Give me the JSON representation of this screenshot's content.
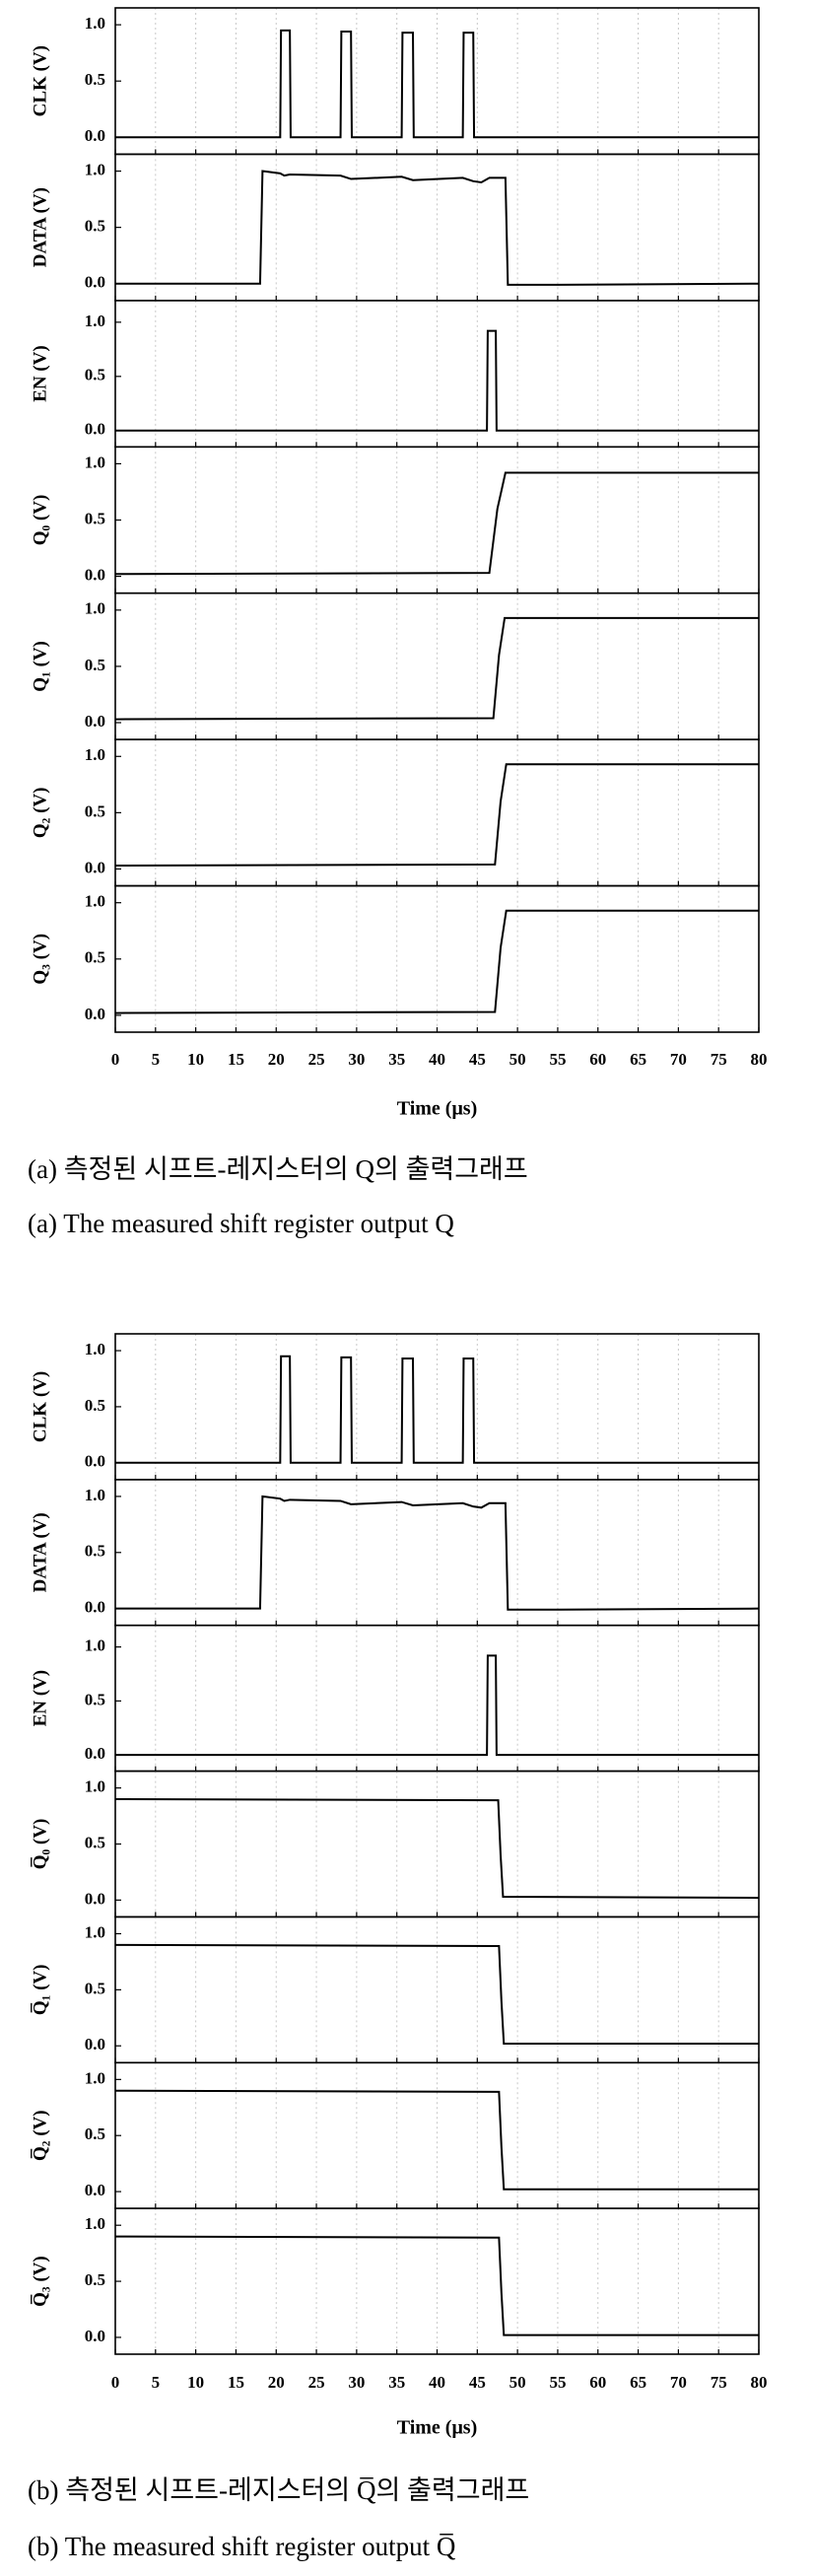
{
  "chart_data": [
    {
      "type": "line",
      "x_label": "Time (μs)",
      "xlim": [
        0,
        80
      ],
      "xticks": [
        0,
        5,
        10,
        15,
        20,
        25,
        30,
        35,
        40,
        45,
        50,
        55,
        60,
        65,
        70,
        75,
        80
      ],
      "grid": true,
      "caption": [
        "(a) 측정된 시프트-레지스터의 Q의 출력그래프",
        "(a) The measured shift register output Q"
      ],
      "panels": [
        {
          "y_label": "CLK (V)",
          "color": "#000000",
          "ylim": [
            -0.15,
            1.15
          ],
          "yticks": [
            {
              "value": 0,
              "label": "0.0"
            },
            {
              "value": 0.5,
              "label": "0.5"
            },
            {
              "value": 1,
              "label": "1.0"
            }
          ],
          "x": [
            0,
            20.5,
            20.6,
            21.7,
            21.8,
            28,
            28.1,
            29.3,
            29.4,
            35.6,
            35.7,
            37,
            37.1,
            43.2,
            43.3,
            44.5,
            44.6,
            80
          ],
          "values": [
            0,
            0,
            0.95,
            0.95,
            0,
            0,
            0.94,
            0.94,
            0,
            0,
            0.93,
            0.93,
            0,
            0,
            0.93,
            0.93,
            0,
            0
          ]
        },
        {
          "y_label": "DATA (V)",
          "color": "#000000",
          "ylim": [
            -0.15,
            1.15
          ],
          "yticks": [
            {
              "value": 0,
              "label": "0.0"
            },
            {
              "value": 0.5,
              "label": "0.5"
            },
            {
              "value": 1,
              "label": "1.0"
            }
          ],
          "x": [
            0,
            18,
            18.3,
            20.5,
            21,
            21.7,
            28,
            29.3,
            35.6,
            37,
            43.2,
            44.5,
            45.5,
            46.5,
            48.5,
            48.8,
            55,
            80
          ],
          "values": [
            0,
            0,
            1.0,
            0.98,
            0.96,
            0.97,
            0.96,
            0.93,
            0.95,
            0.92,
            0.94,
            0.91,
            0.9,
            0.94,
            0.94,
            -0.01,
            -0.01,
            0
          ]
        },
        {
          "y_label": "EN (V)",
          "color": "#000000",
          "ylim": [
            -0.15,
            1.2
          ],
          "yticks": [
            {
              "value": 0,
              "label": "0.0"
            },
            {
              "value": 0.5,
              "label": "0.5"
            },
            {
              "value": 1,
              "label": "1.0"
            }
          ],
          "x": [
            0,
            46.2,
            46.3,
            47.3,
            47.4,
            80
          ],
          "values": [
            0,
            0,
            0.92,
            0.92,
            0,
            0
          ]
        },
        {
          "y_label": "Q₀ (V)",
          "color": "#000000",
          "ylim": [
            -0.15,
            1.15
          ],
          "yticks": [
            {
              "value": 0,
              "label": "0.0"
            },
            {
              "value": 0.5,
              "label": "0.5"
            },
            {
              "value": 1,
              "label": "1.0"
            }
          ],
          "x": [
            0,
            46.5,
            47.5,
            48.5,
            80
          ],
          "values": [
            0.02,
            0.03,
            0.6,
            0.92,
            0.92
          ]
        },
        {
          "y_label": "Q₁ (V)",
          "color": "#000000",
          "ylim": [
            -0.15,
            1.15
          ],
          "yticks": [
            {
              "value": 0,
              "label": "0.0"
            },
            {
              "value": 0.5,
              "label": "0.5"
            },
            {
              "value": 1,
              "label": "1.0"
            }
          ],
          "x": [
            0,
            47,
            47.7,
            48.4,
            80
          ],
          "values": [
            0.03,
            0.04,
            0.6,
            0.93,
            0.93
          ]
        },
        {
          "y_label": "Q₂ (V)",
          "color": "#000000",
          "ylim": [
            -0.15,
            1.15
          ],
          "yticks": [
            {
              "value": 0,
              "label": "0.0"
            },
            {
              "value": 0.5,
              "label": "0.5"
            },
            {
              "value": 1,
              "label": "1.0"
            }
          ],
          "x": [
            0,
            47.2,
            47.9,
            48.6,
            80
          ],
          "values": [
            0.03,
            0.04,
            0.6,
            0.93,
            0.93
          ]
        },
        {
          "y_label": "Q₃ (V)",
          "color": "#000000",
          "ylim": [
            -0.15,
            1.15
          ],
          "yticks": [
            {
              "value": 0,
              "label": "0.0"
            },
            {
              "value": 0.5,
              "label": "0.5"
            },
            {
              "value": 1,
              "label": "1.0"
            }
          ],
          "x": [
            0,
            47.2,
            47.9,
            48.6,
            80
          ],
          "values": [
            0.02,
            0.03,
            0.6,
            0.93,
            0.93
          ]
        }
      ]
    },
    {
      "type": "line",
      "x_label": "Time (μs)",
      "xlim": [
        0,
        80
      ],
      "xticks": [
        0,
        5,
        10,
        15,
        20,
        25,
        30,
        35,
        40,
        45,
        50,
        55,
        60,
        65,
        70,
        75,
        80
      ],
      "grid": true,
      "caption": [
        "(b) 측정된 시프트-레지스터의 Q̅의 출력그래프",
        "(b) The measured shift register output Q̅"
      ],
      "panels": [
        {
          "y_label": "CLK (V)",
          "color": "#000000",
          "ylim": [
            -0.15,
            1.15
          ],
          "yticks": [
            {
              "value": 0,
              "label": "0.0"
            },
            {
              "value": 0.5,
              "label": "0.5"
            },
            {
              "value": 1,
              "label": "1.0"
            }
          ],
          "x": [
            0,
            20.5,
            20.6,
            21.7,
            21.8,
            28,
            28.1,
            29.3,
            29.4,
            35.6,
            35.7,
            37,
            37.1,
            43.2,
            43.3,
            44.5,
            44.6,
            80
          ],
          "values": [
            0,
            0,
            0.95,
            0.95,
            0,
            0,
            0.94,
            0.94,
            0,
            0,
            0.93,
            0.93,
            0,
            0,
            0.93,
            0.93,
            0,
            0
          ]
        },
        {
          "y_label": "DATA (V)",
          "color": "#000000",
          "ylim": [
            -0.15,
            1.15
          ],
          "yticks": [
            {
              "value": 0,
              "label": "0.0"
            },
            {
              "value": 0.5,
              "label": "0.5"
            },
            {
              "value": 1,
              "label": "1.0"
            }
          ],
          "x": [
            0,
            18,
            18.3,
            20.5,
            21,
            21.7,
            28,
            29.3,
            35.6,
            37,
            43.2,
            44.5,
            45.5,
            46.5,
            48.5,
            48.8,
            55,
            80
          ],
          "values": [
            0,
            0,
            1.0,
            0.98,
            0.96,
            0.97,
            0.96,
            0.93,
            0.95,
            0.92,
            0.94,
            0.91,
            0.9,
            0.94,
            0.94,
            -0.01,
            -0.01,
            0
          ]
        },
        {
          "y_label": "EN (V)",
          "color": "#000000",
          "ylim": [
            -0.15,
            1.2
          ],
          "yticks": [
            {
              "value": 0,
              "label": "0.0"
            },
            {
              "value": 0.5,
              "label": "0.5"
            },
            {
              "value": 1,
              "label": "1.0"
            }
          ],
          "x": [
            0,
            46.2,
            46.3,
            47.3,
            47.4,
            80
          ],
          "values": [
            0,
            0,
            0.92,
            0.92,
            0,
            0
          ]
        },
        {
          "y_label": "Q̅₀ (V)",
          "color": "#000000",
          "ylim": [
            -0.15,
            1.15
          ],
          "yticks": [
            {
              "value": 0,
              "label": "0.0"
            },
            {
              "value": 0.5,
              "label": "0.5"
            },
            {
              "value": 1,
              "label": "1.0"
            }
          ],
          "x": [
            0,
            47.6,
            47.9,
            48.2,
            80
          ],
          "values": [
            0.9,
            0.89,
            0.4,
            0.03,
            0.02
          ]
        },
        {
          "y_label": "Q̅₁ (V)",
          "color": "#000000",
          "ylim": [
            -0.15,
            1.15
          ],
          "yticks": [
            {
              "value": 0,
              "label": "0.0"
            },
            {
              "value": 0.5,
              "label": "0.5"
            },
            {
              "value": 1,
              "label": "1.0"
            }
          ],
          "x": [
            0,
            47.7,
            48,
            48.3,
            80
          ],
          "values": [
            0.9,
            0.89,
            0.4,
            0.02,
            0.02
          ]
        },
        {
          "y_label": "Q̅₂ (V)",
          "color": "#000000",
          "ylim": [
            -0.15,
            1.15
          ],
          "yticks": [
            {
              "value": 0,
              "label": "0.0"
            },
            {
              "value": 0.5,
              "label": "0.5"
            },
            {
              "value": 1,
              "label": "1.0"
            }
          ],
          "x": [
            0,
            47.7,
            48,
            48.3,
            80
          ],
          "values": [
            0.9,
            0.89,
            0.4,
            0.02,
            0.02
          ]
        },
        {
          "y_label": "Q̅₃ (V)",
          "color": "#000000",
          "ylim": [
            -0.15,
            1.15
          ],
          "yticks": [
            {
              "value": 0,
              "label": "0.0"
            },
            {
              "value": 0.5,
              "label": "0.5"
            },
            {
              "value": 1,
              "label": "1.0"
            }
          ],
          "x": [
            0,
            47.7,
            48,
            48.3,
            80
          ],
          "values": [
            0.9,
            0.89,
            0.4,
            0.02,
            0.02
          ]
        }
      ]
    }
  ]
}
